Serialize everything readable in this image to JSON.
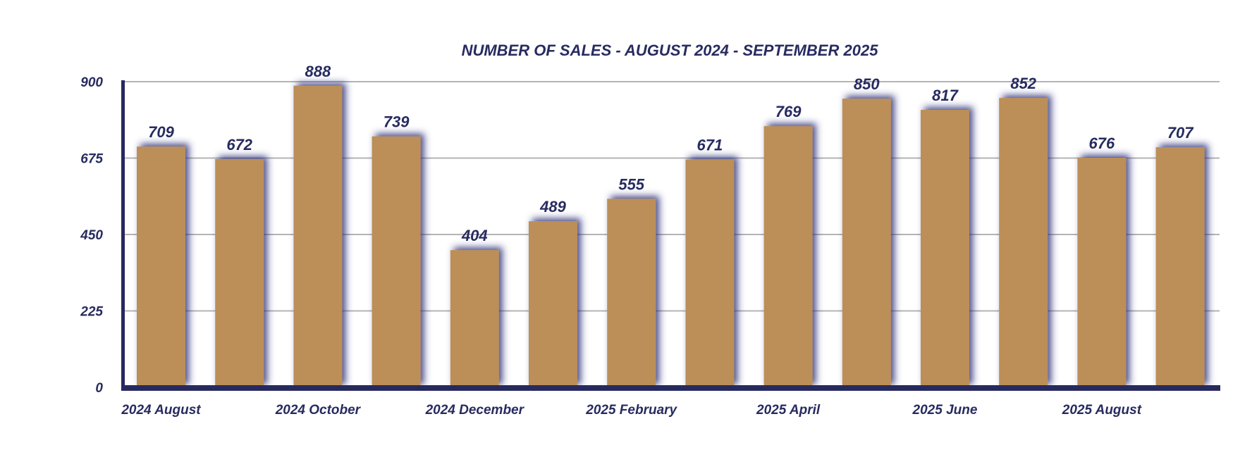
{
  "chart_data": {
    "type": "bar",
    "title": "NUMBER OF SALES - AUGUST 2024 - SEPTEMBER 2025",
    "x_tick_labels": [
      "2024 August",
      "2024 October",
      "2024 December",
      "2025 February",
      "2025 April",
      "2025 June",
      "2025 August"
    ],
    "values": [
      709,
      672,
      888,
      739,
      404,
      489,
      555,
      671,
      769,
      850,
      817,
      852,
      676,
      707
    ],
    "y_ticks": [
      0,
      225,
      450,
      675,
      900
    ],
    "ylim": [
      0,
      900
    ],
    "xlabel": "",
    "ylabel": "",
    "grid": true,
    "legend": "none",
    "colors": {
      "bar": "#BC8F58",
      "text": "#272B60",
      "axis": "#262A5E",
      "grid": "#B4B4B4"
    }
  }
}
